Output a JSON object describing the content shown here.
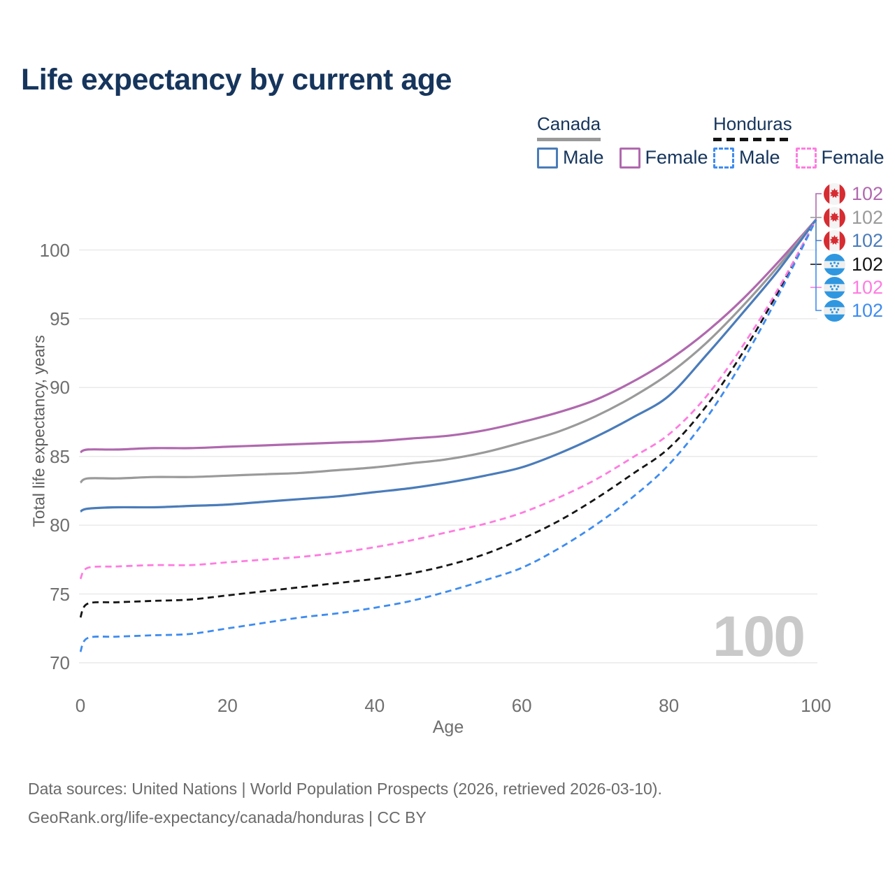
{
  "title": "Life expectancy by current age",
  "legend": {
    "canada": {
      "label": "Canada",
      "male": "Male",
      "female": "Female"
    },
    "honduras": {
      "label": "Honduras",
      "male": "Male",
      "female": "Female"
    }
  },
  "watermark": "100",
  "end_labels": [
    {
      "country": "canada",
      "series": "Canada Female",
      "value": "102",
      "color": "#b069ae"
    },
    {
      "country": "canada",
      "series": "Canada Both sexes",
      "value": "102",
      "color": "#9a9a9a"
    },
    {
      "country": "canada",
      "series": "Canada Male",
      "value": "102",
      "color": "#4a7cba"
    },
    {
      "country": "honduras",
      "series": "Honduras Both sexes",
      "value": "102",
      "color": "#151515"
    },
    {
      "country": "honduras",
      "series": "Honduras Female",
      "value": "102",
      "color": "#ff7ce0"
    },
    {
      "country": "honduras",
      "series": "Honduras Male",
      "value": "102",
      "color": "#3e8cf0"
    }
  ],
  "footer": {
    "line1": "Data sources: United Nations | World Population Prospects (2026, retrieved 2026-03-10).",
    "line2": "GeoRank.org/life-expectancy/canada/honduras | CC BY"
  },
  "colors": {
    "title": "#16355c",
    "gridline": "#e9e9e9",
    "axis_text": "#6f6f6f",
    "canada_female": "#b069ae",
    "canada_both": "#9a9a9a",
    "canada_male": "#4a7cba",
    "honduras_both": "#151515",
    "honduras_female": "#ff7ce0",
    "honduras_male": "#3e8cf0",
    "canada_flag_red": "#d62c32",
    "honduras_flag_blue": "#2f97e0"
  },
  "chart_data": {
    "type": "line",
    "title": "Life expectancy by current age",
    "xlabel": "Age",
    "ylabel": "Total life expectancy, years",
    "xlim": [
      0,
      100
    ],
    "ylim": [
      70,
      102.5
    ],
    "x_ticks": [
      0,
      20,
      40,
      60,
      80,
      100
    ],
    "y_ticks": [
      70,
      75,
      80,
      85,
      90,
      95,
      100
    ],
    "grid": "horizontal",
    "legend_position": "top-right",
    "x": [
      0,
      1,
      5,
      10,
      15,
      20,
      25,
      30,
      35,
      40,
      45,
      50,
      55,
      60,
      65,
      70,
      75,
      80,
      85,
      90,
      95,
      100
    ],
    "series": [
      {
        "name": "Canada Female",
        "style": "solid",
        "color": "#b069ae",
        "values": [
          85.3,
          85.5,
          85.5,
          85.6,
          85.6,
          85.7,
          85.8,
          85.9,
          86.0,
          86.1,
          86.3,
          86.5,
          86.9,
          87.5,
          88.2,
          89.1,
          90.4,
          92.0,
          94.0,
          96.4,
          99.2,
          102.2
        ]
      },
      {
        "name": "Canada Both sexes",
        "style": "solid",
        "color": "#9a9a9a",
        "values": [
          83.1,
          83.4,
          83.4,
          83.5,
          83.5,
          83.6,
          83.7,
          83.8,
          84.0,
          84.2,
          84.5,
          84.8,
          85.3,
          86.0,
          86.8,
          87.9,
          89.3,
          91.0,
          93.2,
          95.9,
          98.9,
          102.2
        ]
      },
      {
        "name": "Canada Male",
        "style": "solid",
        "color": "#4a7cba",
        "values": [
          81.0,
          81.2,
          81.3,
          81.3,
          81.4,
          81.5,
          81.7,
          81.9,
          82.1,
          82.4,
          82.7,
          83.1,
          83.6,
          84.2,
          85.2,
          86.4,
          87.8,
          89.4,
          92.3,
          95.4,
          98.6,
          102.2
        ]
      },
      {
        "name": "Honduras Both sexes",
        "style": "dashed",
        "color": "#151515",
        "values": [
          73.3,
          74.3,
          74.4,
          74.5,
          74.6,
          74.9,
          75.2,
          75.5,
          75.8,
          76.1,
          76.5,
          77.1,
          77.9,
          79.0,
          80.3,
          81.9,
          83.7,
          85.6,
          88.6,
          92.5,
          97.1,
          102.2
        ]
      },
      {
        "name": "Honduras Female",
        "style": "dashed",
        "color": "#ff7ce0",
        "values": [
          76.1,
          76.9,
          77.0,
          77.1,
          77.1,
          77.3,
          77.5,
          77.7,
          78.0,
          78.4,
          78.9,
          79.5,
          80.1,
          80.9,
          82.0,
          83.3,
          84.9,
          86.6,
          89.3,
          93.0,
          97.3,
          102.2
        ]
      },
      {
        "name": "Honduras Male",
        "style": "dashed",
        "color": "#3e8cf0",
        "values": [
          70.8,
          71.8,
          71.9,
          72.0,
          72.1,
          72.5,
          72.9,
          73.3,
          73.6,
          74.0,
          74.5,
          75.2,
          76.0,
          76.9,
          78.3,
          80.0,
          82.0,
          84.4,
          87.7,
          91.9,
          96.8,
          102.2
        ]
      }
    ],
    "end_value_labels": [
      102,
      102,
      102,
      102,
      102,
      102
    ]
  }
}
